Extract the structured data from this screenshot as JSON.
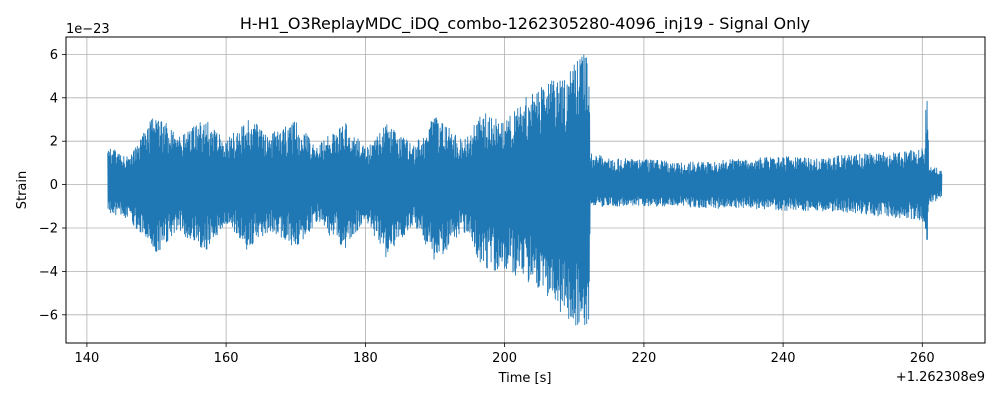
{
  "chart_data": {
    "type": "line",
    "title": "H-H1_O3ReplayMDC_iDQ_combo-1262305280-4096_inj19 - Signal Only",
    "xlabel": "Time [s]",
    "ylabel": "Strain",
    "x_offset_text": "+1.262308e9",
    "y_offset_text": "1e−23",
    "xlim": [
      137,
      269
    ],
    "ylim": [
      -7.3,
      6.8
    ],
    "x_ticks": [
      140,
      160,
      180,
      200,
      220,
      240,
      260
    ],
    "x_tick_labels": [
      "140",
      "160",
      "180",
      "200",
      "220",
      "240",
      "260"
    ],
    "y_ticks": [
      -6,
      -4,
      -2,
      0,
      2,
      4,
      6
    ],
    "y_tick_labels": [
      "−6",
      "−4",
      "−2",
      "0",
      "2",
      "4",
      "6"
    ],
    "grid": true,
    "series": [
      {
        "color": "#1f77b4",
        "envelope": {
          "x": [
            143,
            146,
            150,
            153,
            157,
            160,
            163,
            166,
            170,
            173,
            177,
            180,
            183,
            187,
            190,
            194,
            197,
            200,
            203,
            206,
            209,
            211,
            212.1,
            212.3,
            215,
            220,
            225,
            230,
            235,
            240,
            245,
            250,
            255,
            259.5,
            260.3,
            260.6,
            261,
            262,
            262.8
          ],
          "upper": [
            1.8,
            1.3,
            3.4,
            2.2,
            3.0,
            2.0,
            3.2,
            2.3,
            2.9,
            1.8,
            2.9,
            1.7,
            2.8,
            1.8,
            3.2,
            2.0,
            3.4,
            2.9,
            4.0,
            4.7,
            5.2,
            6.0,
            6.2,
            1.5,
            1.2,
            1.2,
            1.0,
            1.1,
            1.2,
            1.3,
            1.2,
            1.4,
            1.5,
            1.6,
            1.8,
            5.0,
            0.8,
            0.8,
            0.6
          ],
          "lower": [
            -1.3,
            -1.6,
            -3.2,
            -2.1,
            -3.1,
            -1.8,
            -3.0,
            -2.2,
            -2.9,
            -1.8,
            -3.0,
            -1.6,
            -3.4,
            -1.8,
            -3.6,
            -2.3,
            -3.9,
            -4.0,
            -4.4,
            -5.2,
            -6.3,
            -6.6,
            -6.6,
            -1.0,
            -1.0,
            -1.0,
            -1.0,
            -1.1,
            -1.1,
            -1.2,
            -1.2,
            -1.3,
            -1.5,
            -1.6,
            -1.8,
            -3.5,
            -0.8,
            -0.8,
            -0.5
          ]
        }
      }
    ]
  }
}
